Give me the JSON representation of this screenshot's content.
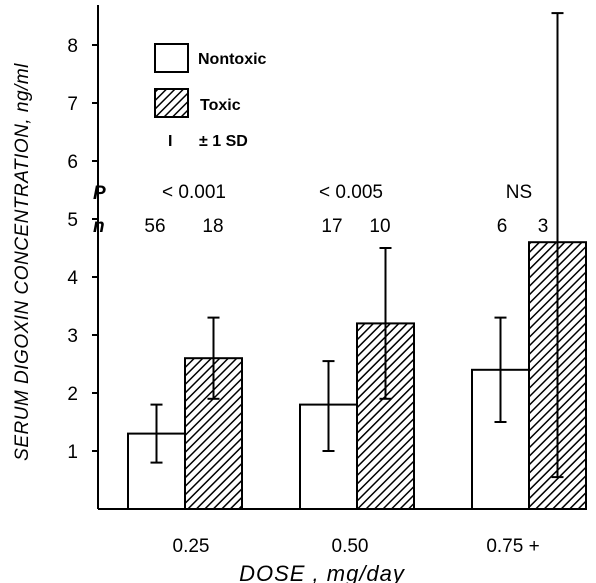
{
  "chart_data": {
    "type": "bar",
    "categories": [
      "0.25",
      "0.50",
      "0.75 +"
    ],
    "series": [
      {
        "name": "Nontoxic",
        "values": [
          1.3,
          1.8,
          2.4
        ],
        "sd_low": [
          0.8,
          1.0,
          1.5
        ],
        "sd_high": [
          1.8,
          2.55,
          3.3
        ],
        "fill": "#ffffff"
      },
      {
        "name": "Toxic",
        "values": [
          2.6,
          3.2,
          4.6
        ],
        "sd_low": [
          1.9,
          1.9,
          0.55
        ],
        "sd_high": [
          3.3,
          4.5,
          8.55
        ],
        "fill": "hatched"
      }
    ],
    "xlabel": "DOSE , mg/day",
    "ylabel": "SERUM DIGOXIN CONCENTRATION, ng/ml",
    "ylim": [
      0,
      8.6
    ],
    "yticks": [
      "1",
      "2",
      "3",
      "4",
      "5",
      "6",
      "7",
      "8"
    ],
    "legend": {
      "position": "top-left",
      "nontoxic": "Nontoxic",
      "toxic": "Toxic",
      "sd_symbol": "I",
      "sd_label": "± 1 SD"
    },
    "annotations": {
      "p_label": "P",
      "n_label": "n",
      "p_values": [
        "< 0.001",
        "< 0.005",
        "NS"
      ],
      "n_values": [
        [
          "56",
          "18"
        ],
        [
          "17",
          "10"
        ],
        [
          "6",
          "3"
        ]
      ]
    },
    "grid": false
  }
}
